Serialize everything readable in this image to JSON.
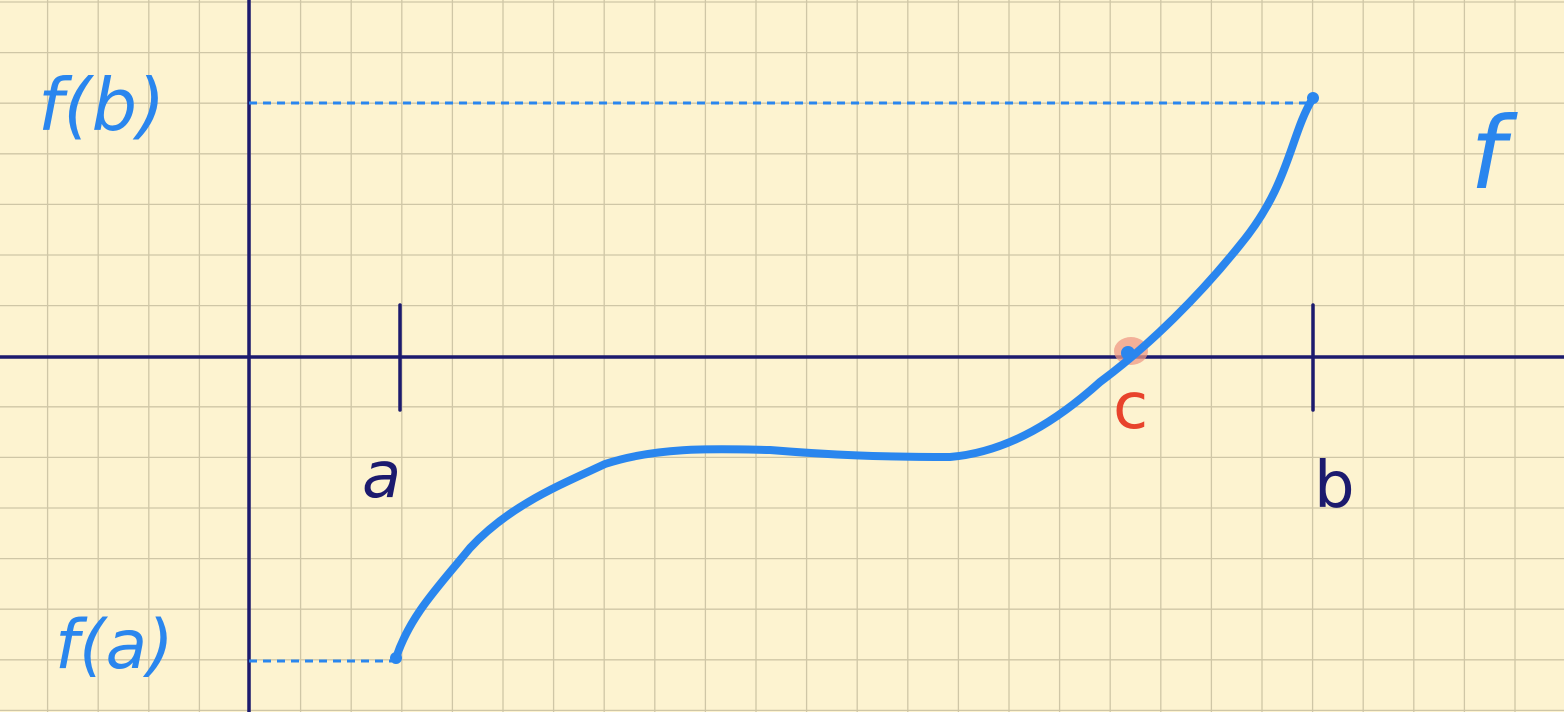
{
  "labels": {
    "fb": "f(b)",
    "fa": "f(a)",
    "function_name": "f",
    "a": "a",
    "b": "b",
    "c": "c"
  },
  "colors": {
    "paper": "#fdf3d0",
    "grid": "#cfc6a6",
    "axis": "#1c1a6e",
    "curve": "#2a86ee",
    "root_highlight": "#ef9a86",
    "root_label": "#e8432c"
  }
}
